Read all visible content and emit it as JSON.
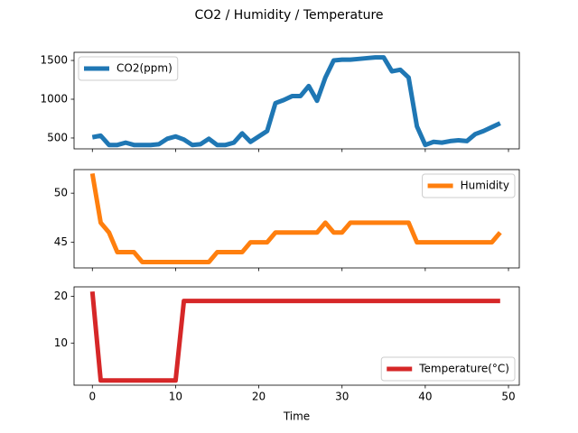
{
  "title": "CO2 / Humidity / Temperature",
  "chart_data": [
    {
      "type": "line",
      "legend": "upper left",
      "x": [
        0,
        1,
        2,
        3,
        4,
        5,
        6,
        7,
        8,
        9,
        10,
        11,
        12,
        13,
        14,
        15,
        16,
        17,
        18,
        19,
        20,
        21,
        22,
        23,
        24,
        25,
        26,
        27,
        28,
        29,
        30,
        31,
        32,
        33,
        34,
        35,
        36,
        37,
        38,
        39,
        40,
        41,
        42,
        43,
        44,
        45,
        46,
        47,
        48,
        49
      ],
      "series": [
        {
          "name": "CO2(ppm)",
          "color": "#1f77b4",
          "values": [
            510,
            530,
            410,
            410,
            440,
            410,
            410,
            410,
            420,
            490,
            520,
            480,
            410,
            420,
            490,
            410,
            410,
            440,
            560,
            450,
            520,
            590,
            950,
            990,
            1040,
            1040,
            1170,
            980,
            1280,
            1500,
            1510,
            1510,
            1520,
            1530,
            1540,
            1540,
            1360,
            1380,
            1280,
            650,
            410,
            450,
            440,
            460,
            470,
            460,
            550,
            590,
            640,
            690
          ]
        }
      ],
      "xlim": [
        -2.2,
        51.3
      ],
      "xticks": [
        0,
        10,
        20,
        30,
        40,
        50
      ],
      "ylim": [
        360,
        1605
      ],
      "yticks": [
        500,
        1000,
        1500
      ]
    },
    {
      "type": "line",
      "legend": "upper right",
      "x": [
        0,
        1,
        2,
        3,
        4,
        5,
        6,
        7,
        8,
        9,
        10,
        11,
        12,
        13,
        14,
        15,
        16,
        17,
        18,
        19,
        20,
        21,
        22,
        23,
        24,
        25,
        26,
        27,
        28,
        29,
        30,
        31,
        32,
        33,
        34,
        35,
        36,
        37,
        38,
        39,
        40,
        41,
        42,
        43,
        44,
        45,
        46,
        47,
        48,
        49
      ],
      "series": [
        {
          "name": "Humidity",
          "color": "#ff7f0e",
          "values": [
            52,
            47,
            46,
            44,
            44,
            44,
            43,
            43,
            43,
            43,
            43,
            43,
            43,
            43,
            43,
            44,
            44,
            44,
            44,
            45,
            45,
            45,
            46,
            46,
            46,
            46,
            46,
            46,
            47,
            46,
            46,
            47,
            47,
            47,
            47,
            47,
            47,
            47,
            47,
            45,
            45,
            45,
            45,
            45,
            45,
            45,
            45,
            45,
            45,
            46
          ]
        }
      ],
      "xlim": [
        -2.2,
        51.3
      ],
      "xticks": [
        0,
        10,
        20,
        30,
        40,
        50
      ],
      "ylim": [
        42.4,
        52.4
      ],
      "yticks": [
        45,
        50
      ]
    },
    {
      "type": "line",
      "legend": "lower right",
      "xlabel": "Time",
      "x": [
        0,
        1,
        2,
        3,
        4,
        5,
        6,
        7,
        8,
        9,
        10,
        11,
        12,
        13,
        14,
        15,
        16,
        17,
        18,
        19,
        20,
        21,
        22,
        23,
        24,
        25,
        26,
        27,
        28,
        29,
        30,
        31,
        32,
        33,
        34,
        35,
        36,
        37,
        38,
        39,
        40,
        41,
        42,
        43,
        44,
        45,
        46,
        47,
        48,
        49
      ],
      "series": [
        {
          "name": "Temperature(°C)",
          "color": "#d62728",
          "values": [
            21,
            2,
            2,
            2,
            2,
            2,
            2,
            2,
            2,
            2,
            2,
            19,
            19,
            19,
            19,
            19,
            19,
            19,
            19,
            19,
            19,
            19,
            19,
            19,
            19,
            19,
            19,
            19,
            19,
            19,
            19,
            19,
            19,
            19,
            19,
            19,
            19,
            19,
            19,
            19,
            19,
            19,
            19,
            19,
            19,
            19,
            19,
            19,
            19,
            19
          ]
        }
      ],
      "xlim": [
        -2.2,
        51.3
      ],
      "xticks": [
        0,
        10,
        20,
        30,
        40,
        50
      ],
      "ylim": [
        1,
        22
      ],
      "yticks": [
        10,
        20
      ]
    }
  ]
}
